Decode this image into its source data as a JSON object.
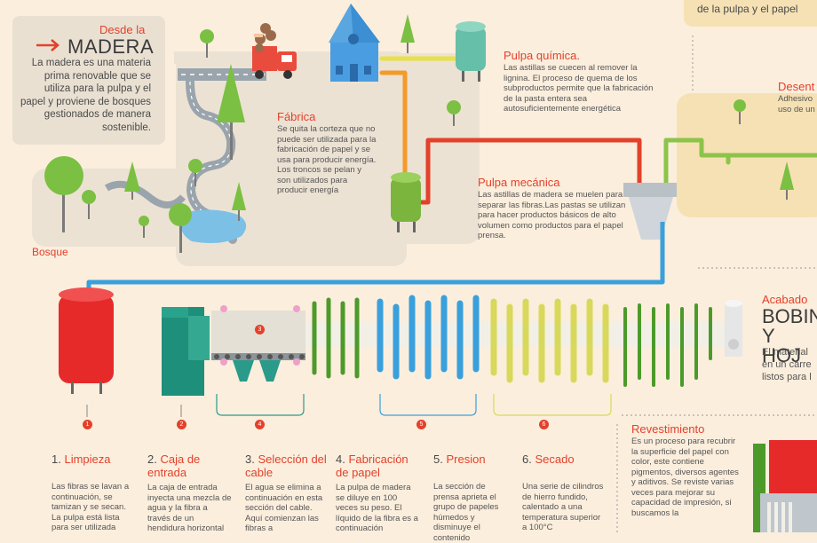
{
  "top_right": {
    "label": "de la pulpa y el papel"
  },
  "intro": {
    "kicker": "Desde la",
    "title": "MADERA",
    "text": "La madera es una materia prima renovable que se utiliza para la pulpa y el papel y proviene de bosques gestionados de manera sostenible."
  },
  "forest": {
    "label": "Bosque"
  },
  "factory": {
    "title": "Fábrica",
    "text": "Se quita la corteza que no puede ser utilizada para la fabricación de papel y se usa para producir energía. Los troncos se pelan y son utilizados para producir energía"
  },
  "chemical_pulp": {
    "title": "Pulpa química.",
    "text": "Las astillas se cuecen al remover la lignina. El proceso de quema de los subproductos permite que la fabricación de la pasta entera sea autosuficientemente energética"
  },
  "mechanical_pulp": {
    "title": "Pulpa mecánica",
    "text": "Las astillas de madera se muelen para separar las fibras.Las pastas se utilizan para hacer productos básicos de alto volumen como productos para el papel prensa."
  },
  "de_inking": {
    "title": "Desent",
    "text": "Adhesivo\nuso de un"
  },
  "finish": {
    "kicker": "Acabado",
    "big1": "BOBIN",
    "big2": "Y HOJ",
    "text": "El material\nen un carre\nlistos para l"
  },
  "coating": {
    "title": "Revestimiento",
    "text": "Es un proceso para recubrir la superficie del papel con color, este contiene pigmentos, diversos agentes y aditivos. Se reviste varias veces para mejorar su capacidad de impresión, si buscamos la"
  },
  "markers": [
    "1",
    "2",
    "3",
    "4",
    "5",
    "6"
  ],
  "steps": [
    {
      "num": "1.",
      "title": "Limpieza",
      "text": "Las fibras se lavan a continuación, se tamizan y se secan. La pulpa está lista para ser utilizada"
    },
    {
      "num": "2.",
      "title": "Caja de entrada",
      "text": "La caja de entrada inyecta una mezcla de agua y la fibra a través de un hendidura horizontal"
    },
    {
      "num": "3.",
      "title": "Selección del cable",
      "text": "El agua se elimina a continuación en esta sección del cable. Aquí comienzan las fibras a"
    },
    {
      "num": "4.",
      "title": "Fabricación de papel",
      "text": "La pulpa de madera se diluye en 100 veces su peso. El líquido de la fibra es a continuación"
    },
    {
      "num": "5.",
      "title": "Presion",
      "text": "La sección de prensa aprieta el grupo de papeles húmedos y disminuye el contenido"
    },
    {
      "num": "6.",
      "title": "Secado",
      "text": "Una serie de cilindros de hierro fundido, calentado a una temperatura superior a 100°C"
    }
  ],
  "colors": {
    "red": "#e3412b",
    "blue": "#3aa0dc",
    "green": "#4c9a2a",
    "yellow": "#d8d95a",
    "teal": "#2a9a8a"
  }
}
